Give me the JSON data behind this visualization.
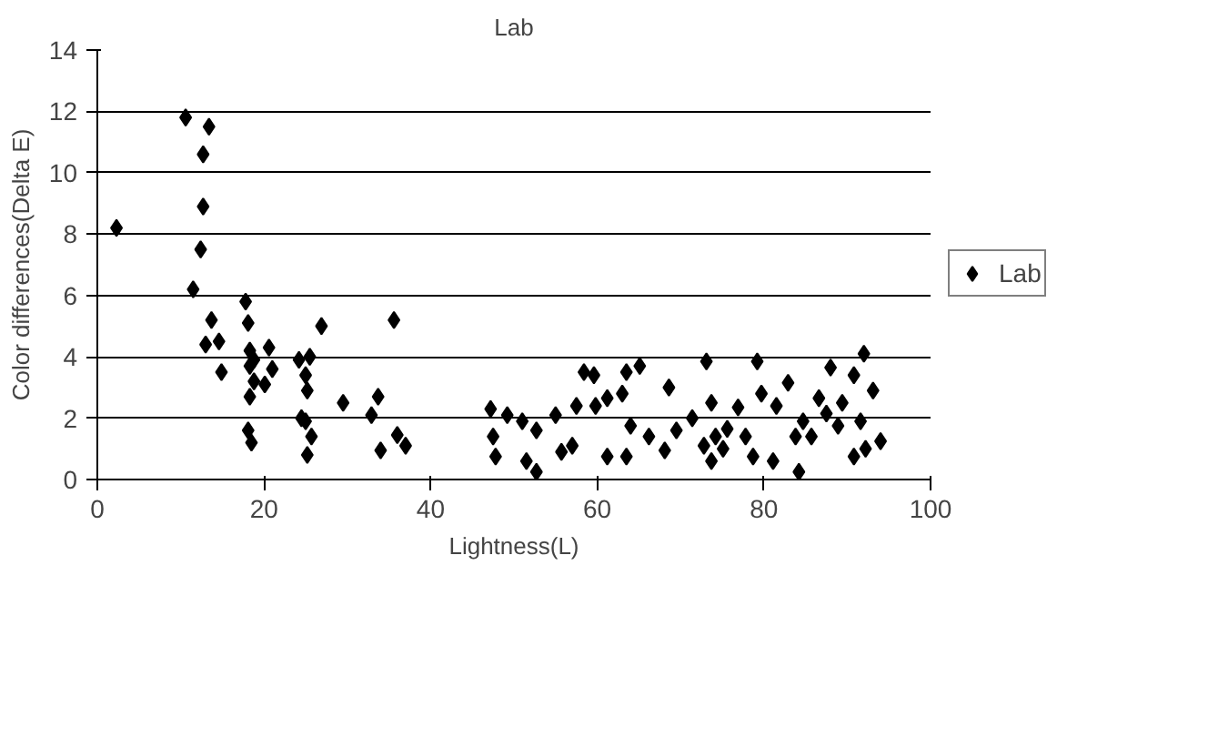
{
  "chart_data": {
    "type": "scatter",
    "title": "Lab",
    "xlabel": "Lightness(L)",
    "ylabel": "Color differences(Delta E)",
    "xlim": [
      0,
      100
    ],
    "xticks": [
      0,
      20,
      40,
      60,
      80,
      100
    ],
    "ylim": [
      0,
      14
    ],
    "yticks": [
      0,
      2,
      4,
      6,
      8,
      10,
      12,
      14
    ],
    "grid": "y",
    "legend": "right",
    "marker": "diamond",
    "series": [
      {
        "name": "Lab",
        "color": "#000000",
        "x": [
          2.3,
          10.6,
          13.4,
          12.7,
          12.7,
          12.4,
          11.5,
          13.7,
          13.0,
          14.6,
          14.9,
          17.8,
          18.1,
          18.3,
          18.3,
          18.8,
          18.3,
          20.6,
          21.0,
          20.1,
          18.8,
          18.1,
          18.5,
          24.2,
          25.5,
          25.0,
          25.2,
          24.5,
          25.0,
          25.7,
          25.2,
          26.9,
          29.5,
          33.7,
          32.9,
          34.0,
          35.6,
          36.0,
          37.0,
          47.2,
          47.5,
          47.8,
          49.2,
          51.0,
          52.7,
          51.5,
          52.7,
          55.0,
          55.7,
          57.5,
          58.4,
          59.6,
          57.0,
          59.8,
          61.2,
          63.0,
          61.2,
          63.5,
          63.5,
          65.1,
          64.0,
          66.2,
          68.6,
          68.1,
          69.5,
          71.4,
          73.1,
          73.7,
          72.8,
          73.7,
          74.2,
          75.1,
          75.6,
          76.9,
          77.8,
          79.2,
          78.7,
          79.7,
          81.1,
          81.5,
          82.9,
          83.8,
          84.2,
          84.7,
          86.6,
          87.5,
          88.0,
          89.4,
          90.8,
          92.0,
          93.1,
          90.8,
          92.2,
          94.0,
          91.6,
          88.9,
          85.7
        ],
        "values": [
          8.2,
          11.8,
          11.5,
          10.6,
          8.9,
          7.5,
          6.2,
          5.2,
          4.4,
          4.5,
          3.5,
          5.8,
          5.1,
          4.2,
          3.7,
          3.2,
          2.7,
          4.3,
          3.6,
          3.1,
          3.9,
          1.6,
          1.2,
          3.9,
          4.0,
          3.4,
          2.9,
          2.0,
          1.9,
          1.4,
          0.8,
          5.0,
          2.5,
          2.7,
          2.1,
          0.95,
          5.2,
          1.45,
          1.1,
          2.3,
          1.4,
          0.75,
          2.1,
          1.9,
          1.6,
          0.6,
          0.25,
          2.1,
          0.9,
          2.4,
          3.5,
          3.4,
          1.1,
          2.4,
          2.65,
          2.8,
          0.75,
          0.75,
          3.5,
          3.7,
          1.75,
          1.4,
          3.0,
          0.95,
          1.6,
          2.0,
          3.85,
          2.5,
          1.1,
          0.6,
          1.4,
          1.0,
          1.65,
          2.35,
          1.4,
          3.85,
          0.75,
          2.8,
          0.6,
          2.4,
          3.15,
          1.4,
          0.25,
          1.9,
          2.65,
          2.15,
          3.65,
          2.5,
          3.4,
          4.1,
          2.9,
          0.75,
          1.0,
          1.25,
          1.9,
          1.75,
          1.4
        ]
      }
    ]
  }
}
